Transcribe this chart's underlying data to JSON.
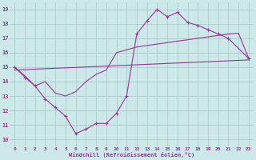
{
  "xlabel": "Windchill (Refroidissement éolien,°C)",
  "bg_color": "#cce8e8",
  "line_color": "#993399",
  "grid_color": "#aacccc",
  "xlim": [
    -0.5,
    23.5
  ],
  "ylim": [
    9.5,
    19.5
  ],
  "yticks": [
    10,
    11,
    12,
    13,
    14,
    15,
    16,
    17,
    18,
    19
  ],
  "xticks": [
    0,
    1,
    2,
    3,
    4,
    5,
    6,
    7,
    8,
    9,
    10,
    11,
    12,
    13,
    14,
    15,
    16,
    17,
    18,
    19,
    20,
    21,
    22,
    23
  ],
  "line1_x": [
    0,
    1,
    2,
    3,
    4,
    5,
    6,
    7,
    8,
    9,
    10,
    11,
    12,
    13,
    14,
    15,
    16,
    17,
    18,
    19,
    20,
    21,
    23
  ],
  "line1_y": [
    15.0,
    14.3,
    13.7,
    12.8,
    12.2,
    11.6,
    10.4,
    10.7,
    11.1,
    11.1,
    11.8,
    13.0,
    17.3,
    18.2,
    19.0,
    18.5,
    18.8,
    18.1,
    17.9,
    17.6,
    17.3,
    17.0,
    15.6
  ],
  "line2_x": [
    0,
    1,
    2,
    3,
    4,
    5,
    6,
    7,
    8,
    9,
    10,
    11,
    12,
    13,
    14,
    15,
    16,
    17,
    18,
    19,
    20,
    21,
    22,
    23
  ],
  "line2_y": [
    15.0,
    14.4,
    13.7,
    14.0,
    13.2,
    13.0,
    13.3,
    14.0,
    14.5,
    14.8,
    16.0,
    16.2,
    16.4,
    16.5,
    16.6,
    16.7,
    16.8,
    16.9,
    17.0,
    17.1,
    17.2,
    17.3,
    17.35,
    15.6
  ],
  "line3_x": [
    0,
    23
  ],
  "line3_y": [
    14.8,
    15.5
  ]
}
